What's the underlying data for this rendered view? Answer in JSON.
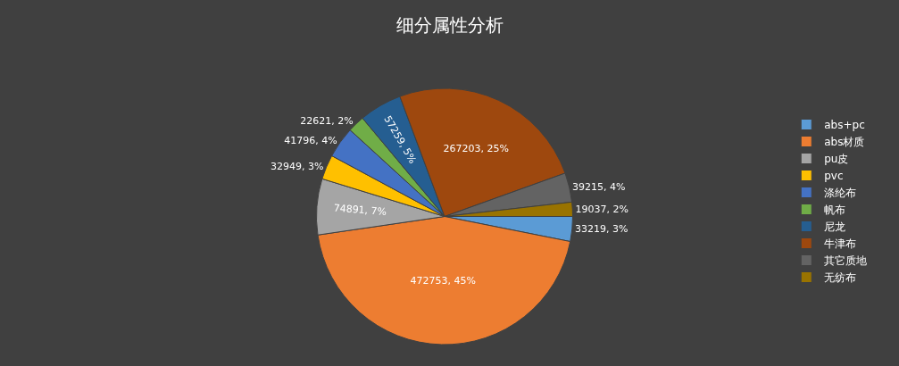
{
  "chart_data": {
    "type": "pie",
    "title": "细分属性分析",
    "categories": [
      "abs+pc",
      "abs材质",
      "pu皮",
      "pvc",
      "涤纶布",
      "帆布",
      "尼龙",
      "牛津布",
      "其它质地",
      "无纺布"
    ],
    "values": [
      33219,
      472753,
      74891,
      32949,
      41796,
      22621,
      57259,
      267203,
      39215,
      19037
    ],
    "value_labels": [
      "33219, 3%",
      "472753, 45%",
      "74891, 7%",
      "32949, 3%",
      "41796, 4%",
      "22621, 2%",
      "57259, 5%",
      "267203, 25%",
      "39215, 4%",
      "19037, 2%"
    ],
    "colors": [
      "#5b9bd5",
      "#ed7d31",
      "#a5a5a5",
      "#ffc000",
      "#4472c4",
      "#70ad47",
      "#255e91",
      "#9e480e",
      "#636363",
      "#997300"
    ],
    "legend": "right"
  }
}
